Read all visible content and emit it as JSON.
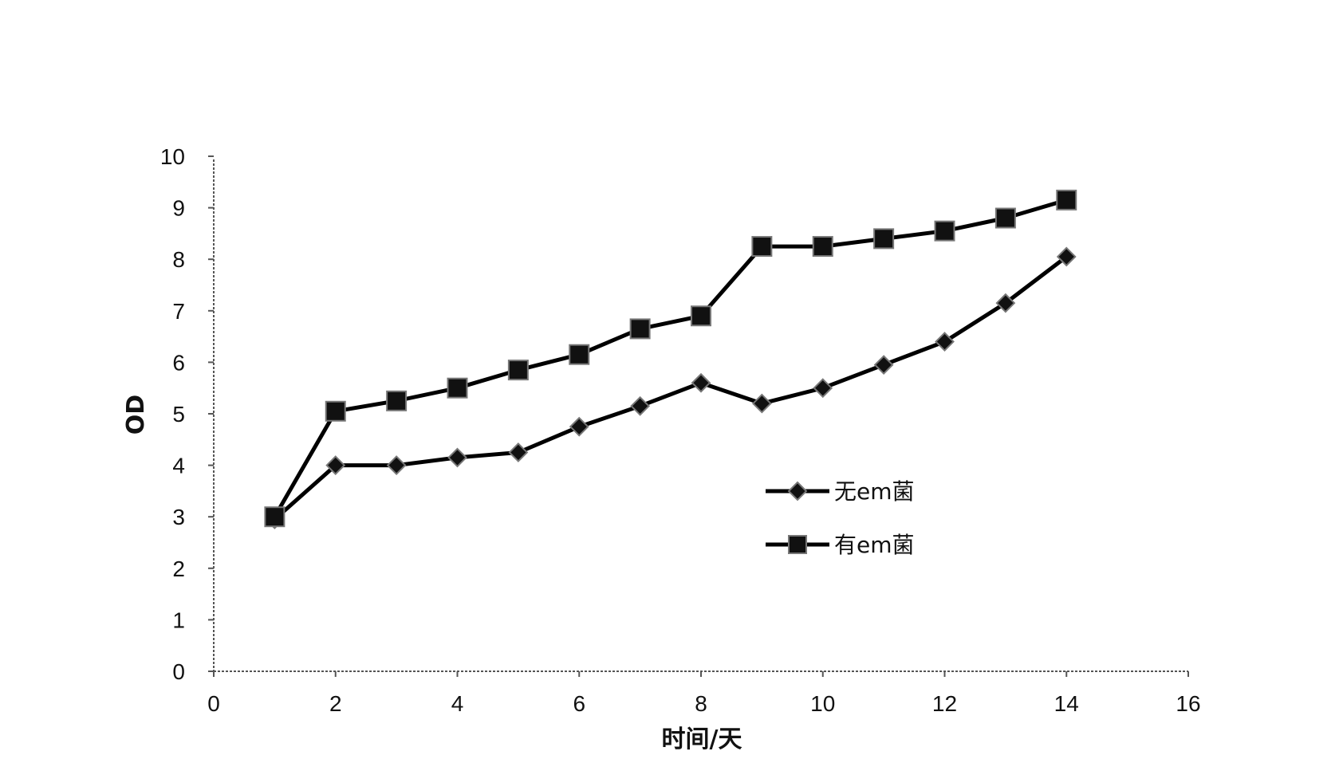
{
  "chart_data": {
    "type": "line",
    "title": "",
    "xlabel": "时间/天",
    "ylabel": "OD",
    "xlim": [
      0,
      16
    ],
    "ylim": [
      0,
      10
    ],
    "x_ticks": [
      "0",
      "2",
      "4",
      "6",
      "8",
      "10",
      "12",
      "14",
      "16"
    ],
    "y_ticks": [
      "0",
      "1",
      "2",
      "3",
      "4",
      "5",
      "6",
      "7",
      "8",
      "9",
      "10"
    ],
    "grid": false,
    "legend_position": "center-right",
    "x": [
      1,
      2,
      3,
      4,
      5,
      6,
      7,
      8,
      9,
      10,
      11,
      12,
      13,
      14
    ],
    "series": [
      {
        "name": "无em菌",
        "marker": "diamond",
        "color": "#000000",
        "values": [
          2.95,
          4.0,
          4.0,
          4.15,
          4.25,
          4.75,
          5.15,
          5.6,
          5.2,
          5.5,
          5.95,
          6.4,
          7.15,
          8.05
        ]
      },
      {
        "name": "有em菌",
        "marker": "square",
        "color": "#000000",
        "values": [
          3.0,
          5.05,
          5.25,
          5.5,
          5.85,
          6.15,
          6.65,
          6.9,
          8.25,
          8.25,
          8.4,
          8.55,
          8.8,
          9.15
        ]
      }
    ]
  }
}
